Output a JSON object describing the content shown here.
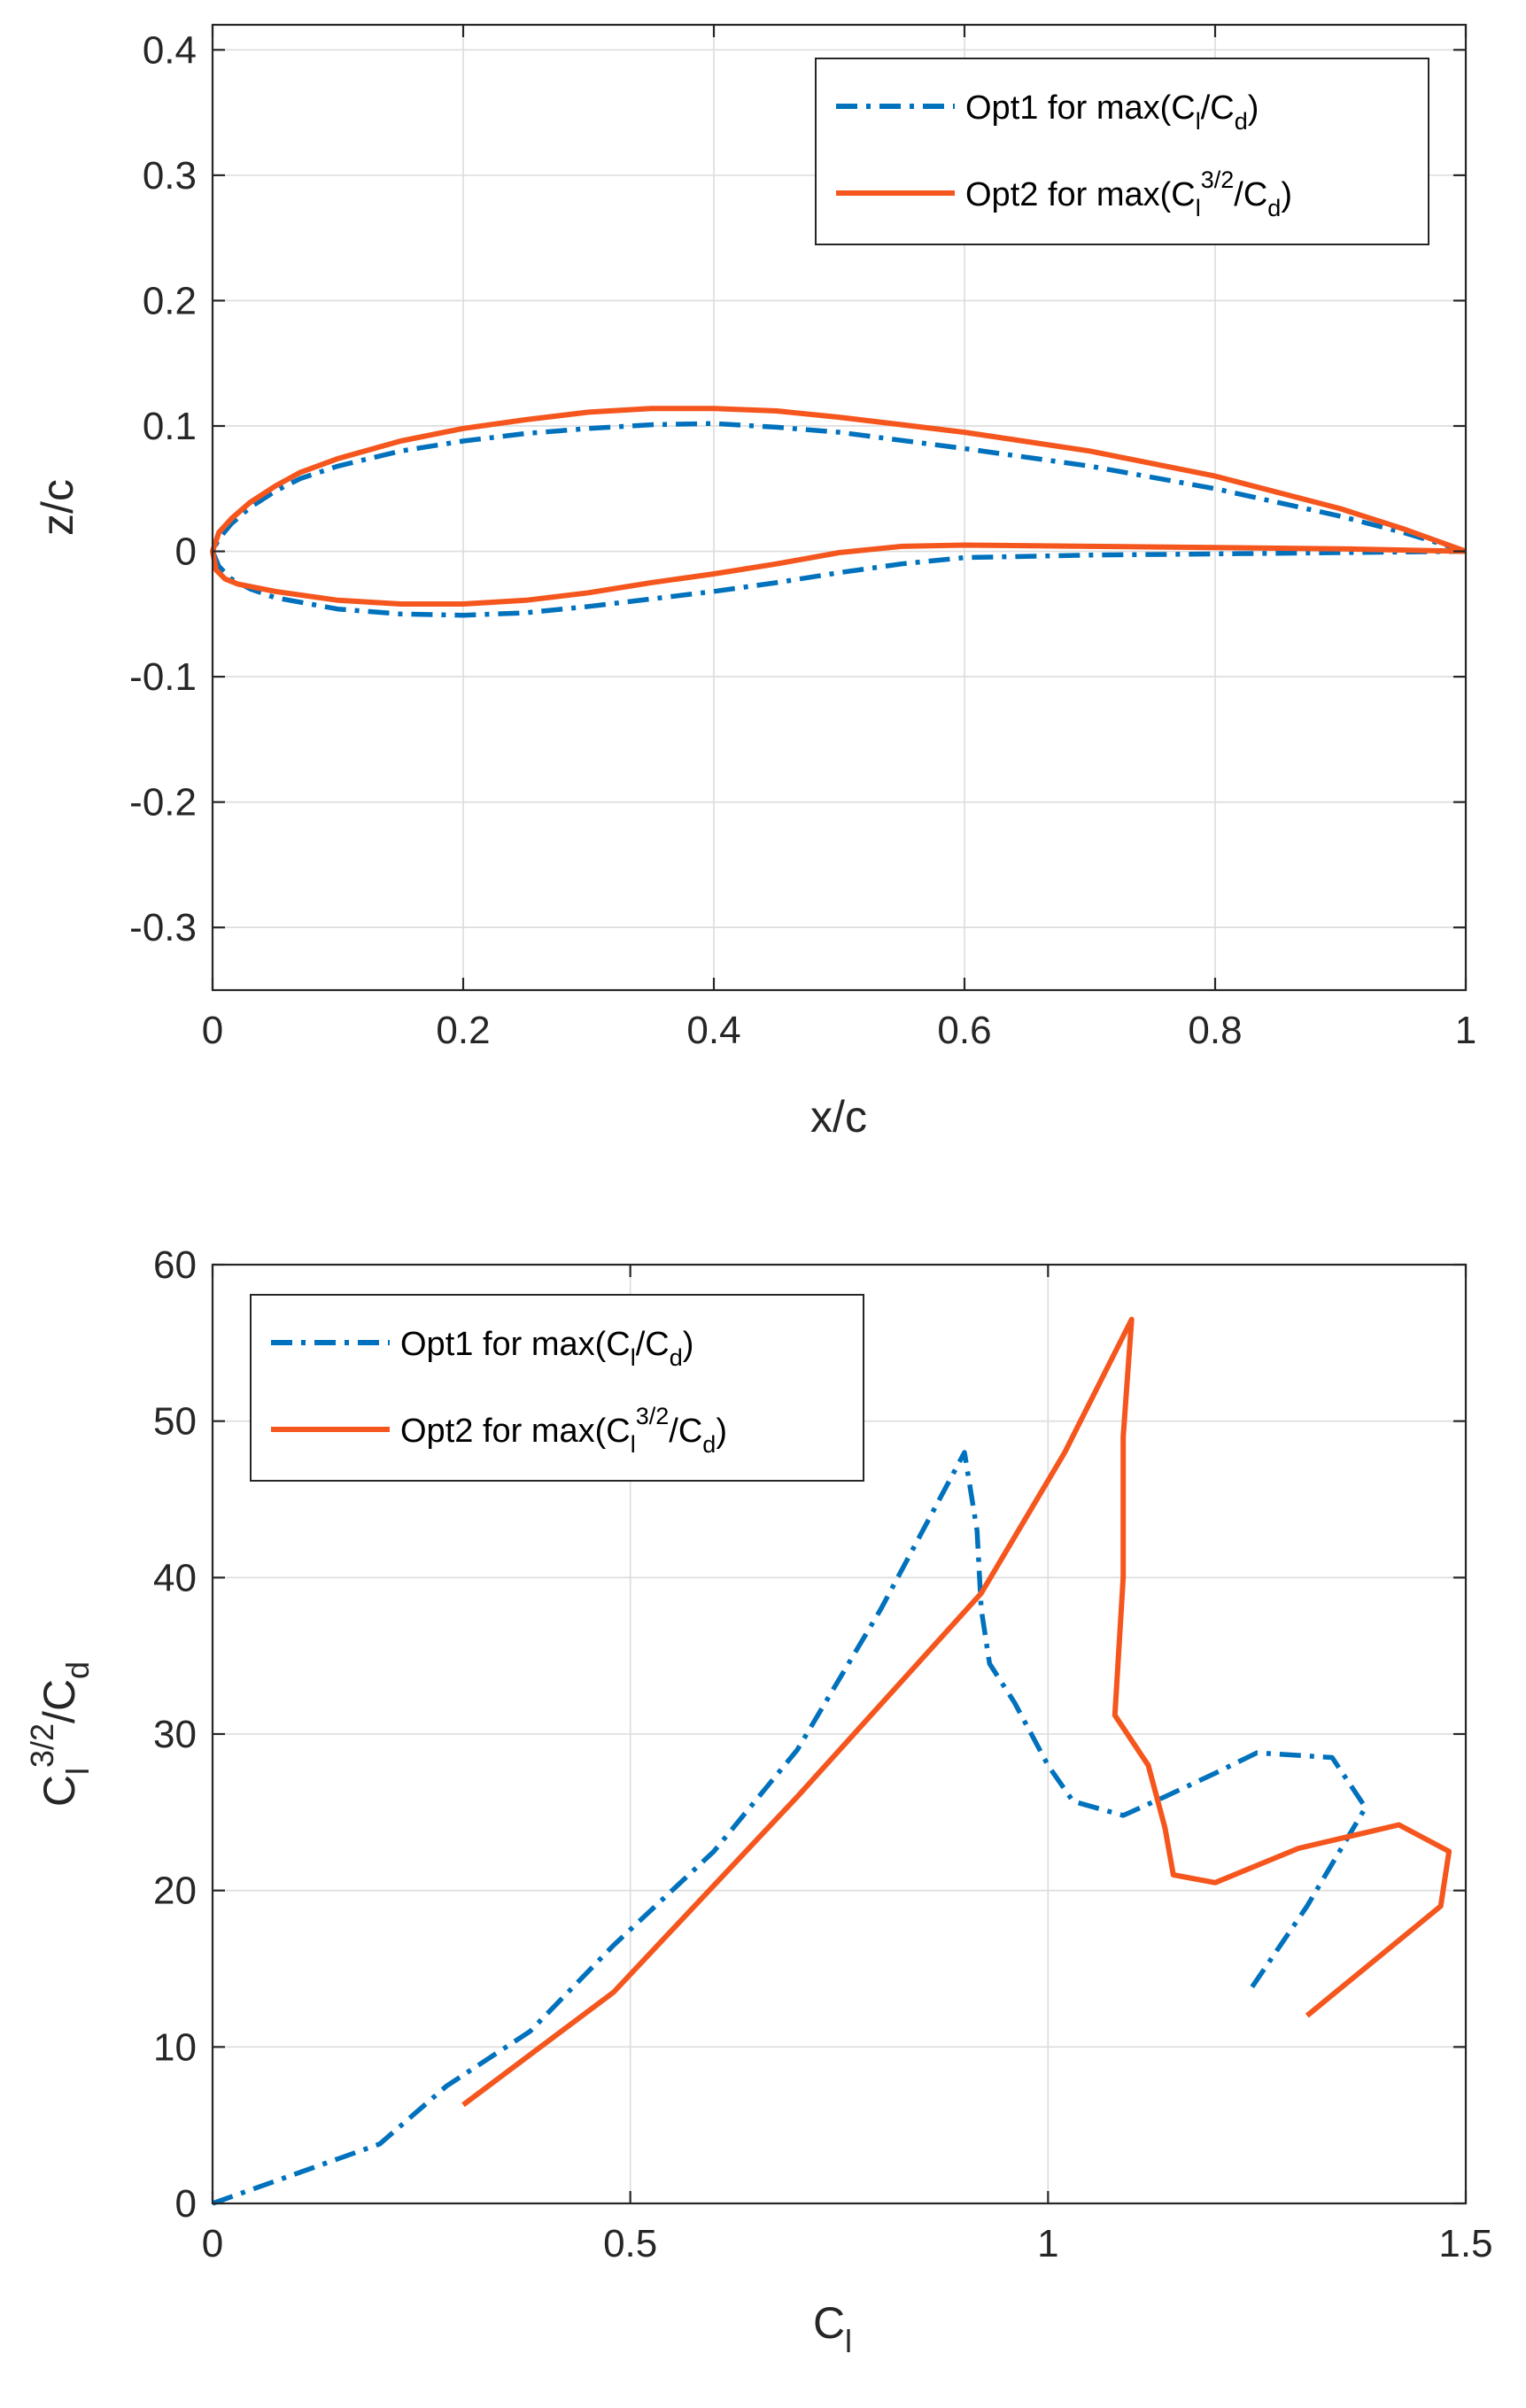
{
  "colors": {
    "opt1": "#0072BD",
    "opt2": "#F5561E"
  },
  "chart_data": [
    {
      "type": "line",
      "title": "",
      "xlabel": "x/c",
      "ylabel": "z/c",
      "xlim": [
        0,
        1
      ],
      "ylim": [
        -0.35,
        0.42
      ],
      "xticks": [
        0,
        0.2,
        0.4,
        0.6,
        0.8,
        1
      ],
      "xtick_labels": [
        "0",
        "0.2",
        "0.4",
        "0.6",
        "0.8",
        "1"
      ],
      "yticks": [
        -0.3,
        -0.2,
        -0.1,
        0,
        0.1,
        0.2,
        0.3,
        0.4
      ],
      "ytick_labels": [
        "-0.3",
        "-0.2",
        "-0.1",
        "0",
        "0.1",
        "0.2",
        "0.3",
        "0.4"
      ],
      "grid": true,
      "legend_position": "top-right",
      "series": [
        {
          "name": "Opt1 for max(C_l/C_d)",
          "legend": {
            "pre": "Opt1 for max(C",
            "sub1": "l",
            "mid": "/C",
            "sub2": "d",
            "post": ")"
          },
          "style": "dashdot",
          "x": [
            1.0,
            0.95,
            0.9,
            0.8,
            0.7,
            0.6,
            0.5,
            0.45,
            0.4,
            0.35,
            0.3,
            0.25,
            0.2,
            0.15,
            0.1,
            0.07,
            0.05,
            0.03,
            0.015,
            0.005,
            0.0,
            0.005,
            0.015,
            0.03,
            0.05,
            0.1,
            0.15,
            0.2,
            0.25,
            0.3,
            0.35,
            0.4,
            0.45,
            0.5,
            0.55,
            0.6,
            0.7,
            0.8,
            0.9,
            1.0
          ],
          "y": [
            0.0,
            0.015,
            0.028,
            0.05,
            0.068,
            0.082,
            0.095,
            0.099,
            0.102,
            0.101,
            0.098,
            0.094,
            0.088,
            0.08,
            0.068,
            0.058,
            0.048,
            0.035,
            0.022,
            0.01,
            0.0,
            -0.012,
            -0.022,
            -0.03,
            -0.037,
            -0.046,
            -0.05,
            -0.051,
            -0.049,
            -0.044,
            -0.038,
            -0.032,
            -0.025,
            -0.017,
            -0.01,
            -0.005,
            -0.003,
            -0.002,
            -0.001,
            0.0
          ]
        },
        {
          "name": "Opt2 for max(C_l^{3/2}/C_d)",
          "legend": {
            "pre": "Opt2 for max(C",
            "sub1": "l",
            "sup1": "3/2",
            "mid": "/C",
            "sub2": "d",
            "post": ")"
          },
          "style": "solid",
          "x": [
            1.0,
            0.95,
            0.9,
            0.8,
            0.7,
            0.6,
            0.5,
            0.45,
            0.4,
            0.35,
            0.3,
            0.25,
            0.2,
            0.15,
            0.1,
            0.07,
            0.05,
            0.03,
            0.015,
            0.005,
            0.0,
            0.003,
            0.01,
            0.02,
            0.05,
            0.1,
            0.15,
            0.2,
            0.25,
            0.3,
            0.35,
            0.4,
            0.45,
            0.5,
            0.55,
            0.6,
            0.7,
            0.8,
            0.9,
            1.0
          ],
          "y": [
            0.0,
            0.018,
            0.034,
            0.06,
            0.08,
            0.095,
            0.107,
            0.112,
            0.114,
            0.114,
            0.111,
            0.105,
            0.098,
            0.088,
            0.074,
            0.063,
            0.052,
            0.039,
            0.026,
            0.015,
            0.0,
            -0.015,
            -0.022,
            -0.026,
            -0.032,
            -0.039,
            -0.042,
            -0.042,
            -0.039,
            -0.033,
            -0.025,
            -0.018,
            -0.01,
            -0.001,
            0.004,
            0.005,
            0.004,
            0.003,
            0.002,
            0.0
          ]
        }
      ]
    },
    {
      "type": "line",
      "title": "",
      "xlabel": "C_l",
      "xlabel_parts": {
        "pre": "C",
        "sub": "l"
      },
      "ylabel": "C_l^{3/2}/C_d",
      "ylabel_parts": {
        "pre": "C",
        "sub1": "l",
        "sup1": "3/2",
        "mid": "/C",
        "sub2": "d"
      },
      "xlim": [
        0,
        1.5
      ],
      "ylim": [
        0,
        60
      ],
      "xticks": [
        0,
        0.5,
        1,
        1.5
      ],
      "xtick_labels": [
        "0",
        "0.5",
        "1",
        "1.5"
      ],
      "yticks": [
        0,
        10,
        20,
        30,
        40,
        50,
        60
      ],
      "ytick_labels": [
        "0",
        "10",
        "20",
        "30",
        "40",
        "50",
        "60"
      ],
      "grid": true,
      "legend_position": "top-left",
      "series": [
        {
          "name": "Opt1 for max(C_l/C_d)",
          "legend": {
            "pre": "Opt1 for max(C",
            "sub1": "l",
            "mid": "/C",
            "sub2": "d",
            "post": ")"
          },
          "style": "dashdot",
          "x": [
            0.0,
            0.2,
            0.28,
            0.38,
            0.48,
            0.6,
            0.7,
            0.8,
            0.9,
            0.915,
            0.92,
            0.93,
            0.96,
            1.0,
            1.03,
            1.09,
            1.14,
            1.2,
            1.25,
            1.34,
            1.38,
            1.31,
            1.24
          ],
          "y": [
            0.0,
            3.8,
            7.5,
            11,
            16.5,
            22.5,
            29,
            38,
            48,
            43,
            38,
            34.5,
            32,
            28,
            25.7,
            24.8,
            26,
            27.5,
            28.8,
            28.5,
            25.3,
            19,
            13.5
          ]
        },
        {
          "name": "Opt2 for max(C_l^{3/2}/C_d)",
          "legend": {
            "pre": "Opt2 for max(C",
            "sub1": "l",
            "sup1": "3/2",
            "mid": "/C",
            "sub2": "d",
            "post": ")"
          },
          "style": "solid",
          "x": [
            0.3,
            0.48,
            0.7,
            0.92,
            1.02,
            1.1,
            1.09,
            1.09,
            1.08,
            1.12,
            1.14,
            1.15,
            1.2,
            1.3,
            1.42,
            1.48,
            1.47,
            1.31
          ],
          "y": [
            6.3,
            13.5,
            26,
            39,
            48,
            56.5,
            49,
            40,
            31.2,
            28,
            24,
            21,
            20.5,
            22.7,
            24.2,
            22.5,
            19,
            12
          ]
        }
      ]
    }
  ]
}
